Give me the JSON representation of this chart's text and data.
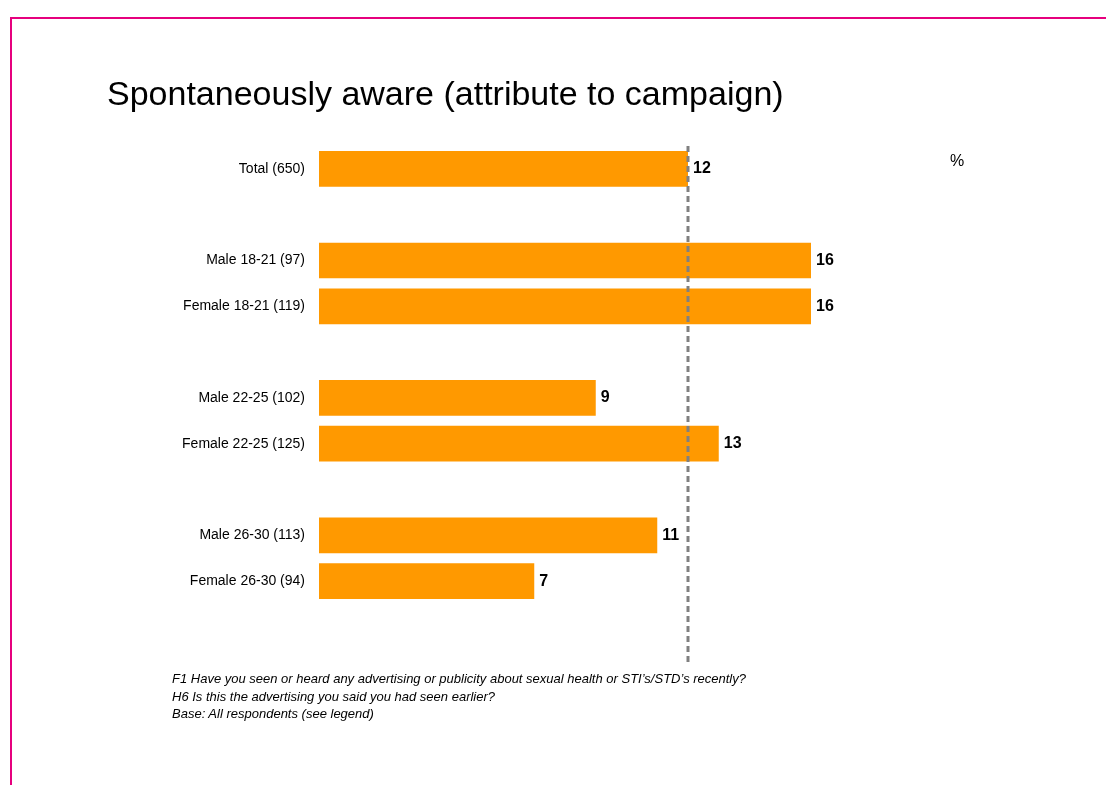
{
  "chart_data": {
    "type": "bar",
    "orientation": "horizontal",
    "title": "Spontaneously aware (attribute to campaign)",
    "categories": [
      "Total (650)",
      null,
      "Male 18-21 (97)",
      "Female 18-21 (119)",
      null,
      "Male 22-25 (102)",
      "Female 22-25 (125)",
      null,
      "Male 26-30 (113)",
      "Female 26-30 (94)"
    ],
    "values": [
      12,
      null,
      16,
      16,
      null,
      9,
      13,
      null,
      11,
      7
    ],
    "color": "#ff9900",
    "data_labels": true,
    "legend": false,
    "tick_labels": "y",
    "ref_lines": [
      {
        "axis": "x",
        "value": 12,
        "color": "#808080",
        "line_style": "dashed"
      }
    ],
    "annotations": [
      "%",
      "F1 Have you seen or heard any advertising or publicity about sexual health or STI’s/STD’s recently?",
      "H6 Is this the advertising you said you had seen earlier?",
      "Base:  All respondents (see legend)"
    ]
  }
}
